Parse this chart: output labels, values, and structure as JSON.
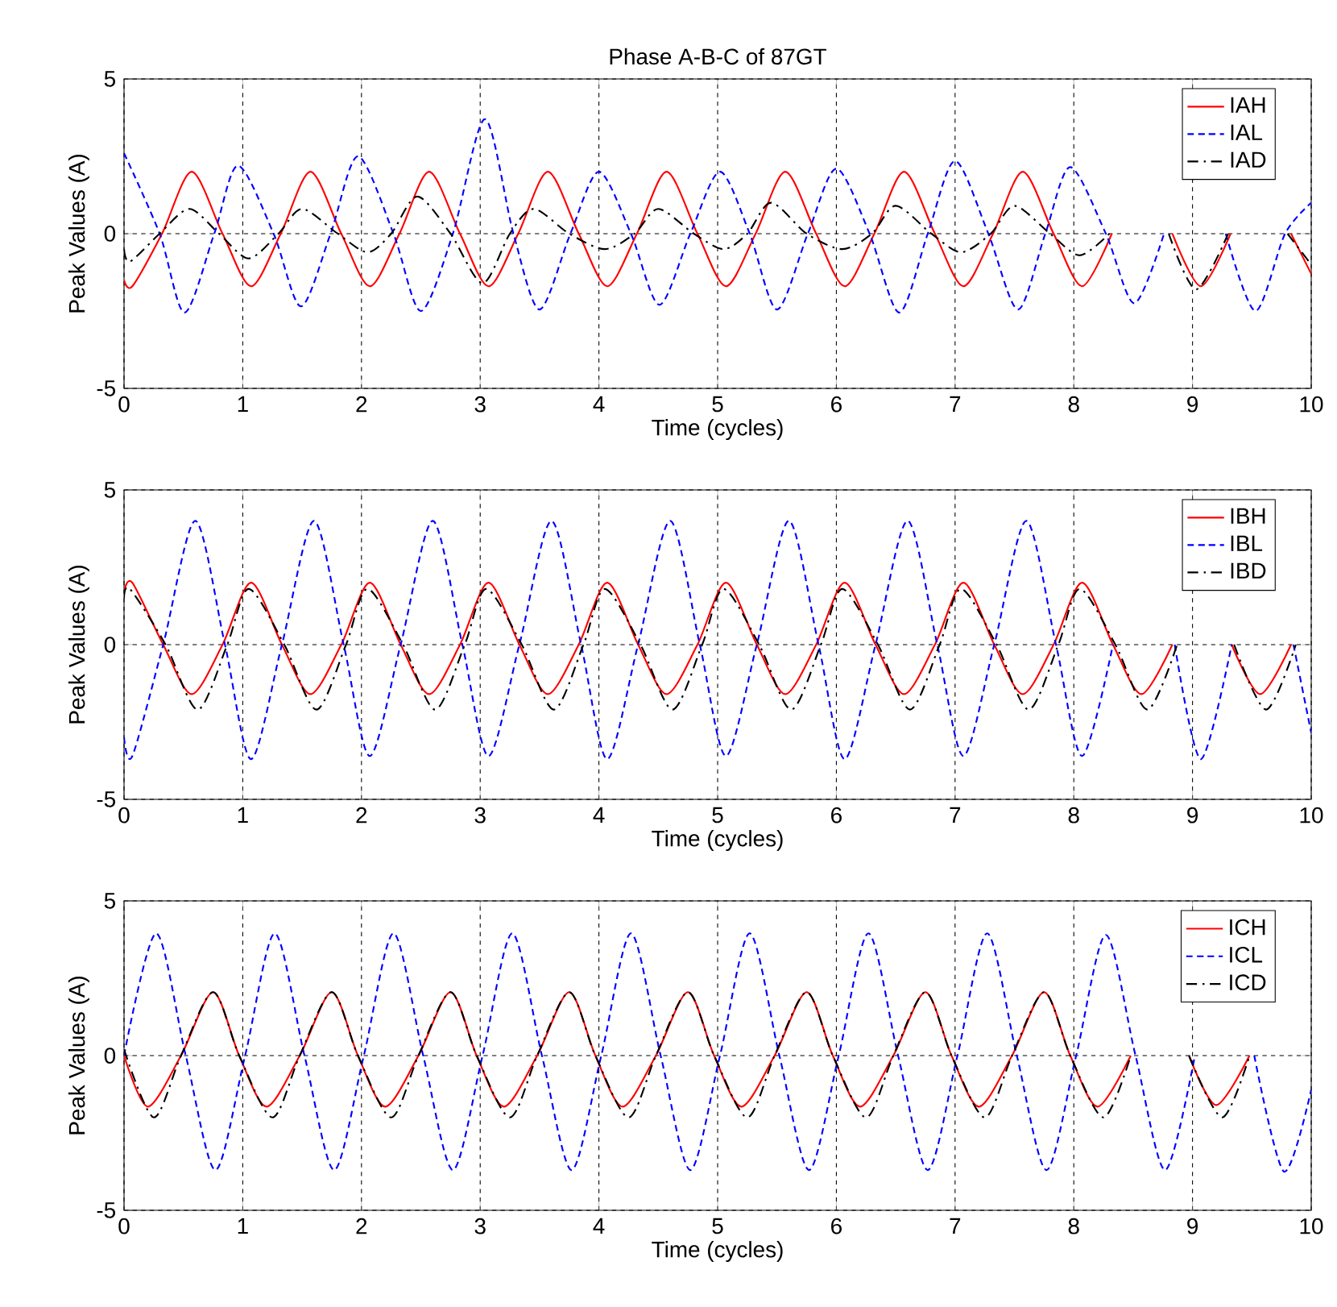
{
  "chart_data": [
    {
      "type": "line",
      "title": "Phase A-B-C of 87GT",
      "xlabel": "Time (cycles)",
      "ylabel": "Peak Values (A)",
      "xlim": [
        0,
        10
      ],
      "ylim": [
        -5,
        5
      ],
      "xticks": [
        0,
        1,
        2,
        3,
        4,
        5,
        6,
        7,
        8,
        9,
        10
      ],
      "yticks": [
        -5,
        0,
        5
      ],
      "grid": true,
      "legend": "top right",
      "series": [
        {
          "name": "IAH",
          "color": "#ff0000",
          "line_style": "solid",
          "x": [
            0,
            0.07,
            0.32,
            0.57,
            0.83,
            1.07,
            1.32,
            1.57,
            1.83,
            2.07,
            2.32,
            2.57,
            2.83,
            3.07,
            3.32,
            3.57,
            3.83,
            4.07,
            4.32,
            4.57,
            4.83,
            5.07,
            5.32,
            5.57,
            5.83,
            6.07,
            6.32,
            6.57,
            6.83,
            7.07,
            7.32,
            7.57,
            7.83,
            8.07,
            8.32,
            8.57,
            8.83,
            9.07,
            9.32,
            9.57,
            9.83,
            10
          ],
          "values": [
            -1.5,
            -1.7,
            0,
            2.0,
            0,
            -1.7,
            0,
            2.0,
            0,
            -1.7,
            0,
            2.0,
            0,
            -1.7,
            0,
            2.0,
            0,
            -1.7,
            0,
            2.0,
            0,
            -1.7,
            0,
            2.0,
            0,
            -1.7,
            0,
            2.0,
            0,
            -1.7,
            0,
            2.0,
            0,
            -1.7,
            0,
            null,
            0,
            -1.7,
            0,
            null,
            0,
            -1.3
          ]
        },
        {
          "name": "IAL",
          "color": "#0000ff",
          "line_style": "dashed",
          "x": [
            0,
            0.3,
            0.51,
            0.76,
            0.96,
            1.26,
            1.49,
            1.74,
            1.97,
            2.27,
            2.5,
            2.77,
            3.04,
            3.28,
            3.5,
            3.76,
            4.0,
            4.27,
            4.51,
            4.77,
            5.02,
            5.27,
            5.5,
            5.76,
            6.0,
            6.28,
            6.53,
            6.77,
            7.0,
            7.28,
            7.53,
            7.76,
            7.97,
            8.27,
            8.51,
            8.76,
            8.98,
            9.28,
            9.53,
            9.78,
            10
          ],
          "values": [
            2.6,
            0,
            -2.55,
            0,
            2.2,
            0,
            -2.35,
            0,
            2.5,
            0,
            -2.5,
            0,
            3.7,
            0,
            -2.45,
            0,
            2.0,
            0,
            -2.3,
            0,
            2.0,
            0,
            -2.45,
            0,
            2.1,
            0,
            -2.55,
            0,
            2.35,
            0,
            -2.45,
            0,
            2.15,
            0,
            -2.25,
            0,
            null,
            0,
            -2.5,
            0,
            1.0
          ]
        },
        {
          "name": "IAD",
          "color": "#000000",
          "line_style": "dashdot",
          "x": [
            0,
            0.05,
            0.3,
            0.55,
            0.8,
            1.05,
            1.3,
            1.5,
            1.8,
            2.05,
            2.25,
            2.47,
            2.75,
            3.02,
            3.25,
            3.45,
            3.75,
            4.05,
            4.3,
            4.5,
            4.8,
            5.05,
            5.25,
            5.45,
            5.75,
            6.05,
            6.3,
            6.5,
            6.8,
            7.05,
            7.3,
            7.5,
            7.8,
            8.05,
            8.3,
            8.5,
            8.8,
            9.03,
            9.3,
            9.5,
            9.8,
            10
          ],
          "values": [
            -0.5,
            -0.9,
            0,
            0.8,
            0,
            -0.8,
            0,
            0.8,
            0,
            -0.6,
            0,
            1.2,
            0,
            -1.6,
            0,
            0.8,
            0,
            -0.5,
            0,
            0.8,
            0,
            -0.5,
            0,
            1.0,
            0,
            -0.5,
            0,
            0.9,
            0,
            -0.6,
            0,
            0.9,
            0,
            -0.7,
            0,
            null,
            0,
            -1.8,
            0,
            null,
            0,
            -1.0
          ]
        }
      ]
    },
    {
      "type": "line",
      "xlabel": "Time (cycles)",
      "ylabel": "Peak Values (A)",
      "xlim": [
        0,
        10
      ],
      "ylim": [
        -5,
        5
      ],
      "xticks": [
        0,
        1,
        2,
        3,
        4,
        5,
        6,
        7,
        8,
        9,
        10
      ],
      "yticks": [
        -5,
        0,
        5
      ],
      "grid": true,
      "legend": "top right",
      "series": [
        {
          "name": "IBH",
          "color": "#ff0000",
          "line_style": "solid",
          "x": [
            0,
            0.07,
            0.33,
            0.57,
            0.83,
            1.07,
            1.33,
            1.57,
            1.83,
            2.07,
            2.33,
            2.57,
            2.83,
            3.07,
            3.33,
            3.57,
            3.83,
            4.07,
            4.33,
            4.57,
            4.83,
            5.07,
            5.33,
            5.57,
            5.83,
            6.07,
            6.33,
            6.57,
            6.83,
            7.07,
            7.33,
            7.57,
            7.83,
            8.07,
            8.33,
            8.57,
            8.83,
            9.07,
            9.33,
            9.57,
            9.83
          ],
          "values": [
            1.7,
            2.0,
            0,
            -1.6,
            0,
            2.0,
            0,
            -1.6,
            0,
            2.0,
            0,
            -1.6,
            0,
            2.0,
            0,
            -1.6,
            0,
            2.0,
            0,
            -1.6,
            0,
            2.0,
            0,
            -1.6,
            0,
            2.0,
            0,
            -1.6,
            0,
            2.0,
            0,
            -1.6,
            0,
            2.0,
            0,
            -1.6,
            0,
            null,
            0,
            -1.6,
            0
          ]
        },
        {
          "name": "IBL",
          "color": "#0000ff",
          "line_style": "dashed",
          "x": [
            0,
            0.07,
            0.33,
            0.6,
            0.85,
            1.07,
            1.33,
            1.6,
            1.85,
            2.07,
            2.33,
            2.6,
            2.85,
            3.07,
            3.33,
            3.6,
            3.85,
            4.07,
            4.33,
            4.6,
            4.85,
            5.07,
            5.33,
            5.6,
            5.85,
            6.07,
            6.33,
            6.6,
            6.85,
            7.07,
            7.33,
            7.6,
            7.85,
            8.07,
            8.33,
            8.6,
            8.85,
            9.07,
            9.33,
            9.6,
            9.85,
            10
          ],
          "values": [
            -3.0,
            -3.6,
            0,
            4.0,
            0,
            -3.7,
            0,
            4.0,
            0,
            -3.6,
            0,
            4.0,
            0,
            -3.6,
            0,
            4.0,
            0,
            -3.7,
            0,
            4.0,
            0,
            -3.6,
            0,
            4.0,
            0,
            -3.7,
            0,
            4.0,
            0,
            -3.6,
            0,
            4.0,
            0,
            -3.6,
            0,
            null,
            0,
            -3.7,
            0,
            null,
            0,
            -2.85
          ]
        },
        {
          "name": "IBD",
          "color": "#000000",
          "line_style": "dashdot",
          "x": [
            0,
            0.05,
            0.35,
            0.62,
            0.87,
            1.05,
            1.35,
            1.62,
            1.87,
            2.05,
            2.35,
            2.62,
            2.87,
            3.05,
            3.35,
            3.62,
            3.87,
            4.05,
            4.35,
            4.62,
            4.87,
            5.05,
            5.35,
            5.62,
            5.87,
            6.05,
            6.35,
            6.62,
            6.87,
            7.05,
            7.35,
            7.62,
            7.87,
            8.05,
            8.35,
            8.62,
            8.87,
            9.05,
            9.35,
            9.62,
            9.87
          ],
          "values": [
            1.5,
            1.8,
            0,
            -2.1,
            0,
            1.8,
            0,
            -2.1,
            0,
            1.8,
            0,
            -2.1,
            0,
            1.8,
            0,
            -2.1,
            0,
            1.8,
            0,
            -2.1,
            0,
            1.8,
            0,
            -2.1,
            0,
            1.8,
            0,
            -2.1,
            0,
            1.8,
            0,
            -2.1,
            0,
            1.8,
            0,
            -2.1,
            0,
            null,
            0,
            -2.1,
            0
          ]
        }
      ]
    },
    {
      "type": "line",
      "xlabel": "Time (cycles)",
      "ylabel": "Peak Values (A)",
      "xlim": [
        0,
        10
      ],
      "ylim": [
        -5,
        5
      ],
      "xticks": [
        0,
        1,
        2,
        3,
        4,
        5,
        6,
        7,
        8,
        9,
        10
      ],
      "yticks": [
        -5,
        0,
        5
      ],
      "grid": true,
      "legend": "top right",
      "series": [
        {
          "name": "ICH",
          "color": "#ff0000",
          "line_style": "solid",
          "x": [
            0,
            0.2,
            0.48,
            0.75,
            0.97,
            1.2,
            1.48,
            1.75,
            1.97,
            2.2,
            2.48,
            2.75,
            2.97,
            3.2,
            3.48,
            3.75,
            3.97,
            4.2,
            4.48,
            4.75,
            4.97,
            5.2,
            5.48,
            5.75,
            5.97,
            6.2,
            6.48,
            6.75,
            6.97,
            7.2,
            7.48,
            7.75,
            7.97,
            8.2,
            8.48,
            8.75,
            8.97,
            9.2,
            9.48
          ],
          "values": [
            0,
            -1.65,
            0,
            2.05,
            0,
            -1.65,
            0,
            2.05,
            0,
            -1.65,
            0,
            2.05,
            0,
            -1.65,
            0,
            2.05,
            0,
            -1.65,
            0,
            2.05,
            0,
            -1.65,
            0,
            2.05,
            0,
            -1.65,
            0,
            2.05,
            0,
            -1.65,
            0,
            2.05,
            0,
            -1.65,
            0,
            null,
            0,
            -1.6,
            0
          ]
        },
        {
          "name": "ICL",
          "color": "#0000ff",
          "line_style": "dashed",
          "x": [
            0,
            0.27,
            0.52,
            0.77,
            1.02,
            1.27,
            1.52,
            1.77,
            2.02,
            2.27,
            2.52,
            2.77,
            3.02,
            3.27,
            3.52,
            3.77,
            4.02,
            4.27,
            4.52,
            4.77,
            5.02,
            5.27,
            5.52,
            5.77,
            6.02,
            6.27,
            6.52,
            6.77,
            7.02,
            7.27,
            7.52,
            7.77,
            8.02,
            8.27,
            8.52,
            8.77,
            9.02,
            9.27,
            9.52,
            9.77,
            10
          ],
          "values": [
            0,
            3.95,
            0,
            -3.7,
            0,
            3.95,
            0,
            -3.7,
            0,
            3.95,
            0,
            -3.7,
            0,
            3.95,
            0,
            -3.7,
            0,
            3.95,
            0,
            -3.7,
            0,
            3.95,
            0,
            -3.7,
            0,
            3.95,
            0,
            -3.7,
            0,
            3.95,
            0,
            -3.7,
            0,
            3.9,
            0,
            -3.7,
            0,
            null,
            0,
            -3.75,
            -1.1
          ]
        },
        {
          "name": "ICD",
          "color": "#000000",
          "line_style": "dashdot",
          "x": [
            0,
            0.25,
            0.48,
            0.75,
            0.97,
            1.25,
            1.48,
            1.75,
            1.97,
            2.25,
            2.48,
            2.75,
            2.97,
            3.25,
            3.48,
            3.75,
            3.97,
            4.25,
            4.48,
            4.75,
            4.97,
            5.25,
            5.48,
            5.75,
            5.97,
            6.25,
            6.48,
            6.75,
            6.97,
            7.25,
            7.48,
            7.75,
            7.97,
            8.25,
            8.48,
            8.75,
            8.97,
            9.25,
            9.48
          ],
          "values": [
            0.2,
            -2.0,
            0,
            2.05,
            0,
            -2.0,
            0,
            2.05,
            0,
            -2.0,
            0,
            2.05,
            0,
            -2.0,
            0,
            2.05,
            0,
            -2.0,
            0,
            2.05,
            0,
            -2.0,
            0,
            2.05,
            0,
            -2.0,
            0,
            2.05,
            0,
            -2.0,
            0,
            2.05,
            0,
            -2.0,
            0,
            null,
            0,
            -2.0,
            0
          ]
        }
      ]
    }
  ]
}
